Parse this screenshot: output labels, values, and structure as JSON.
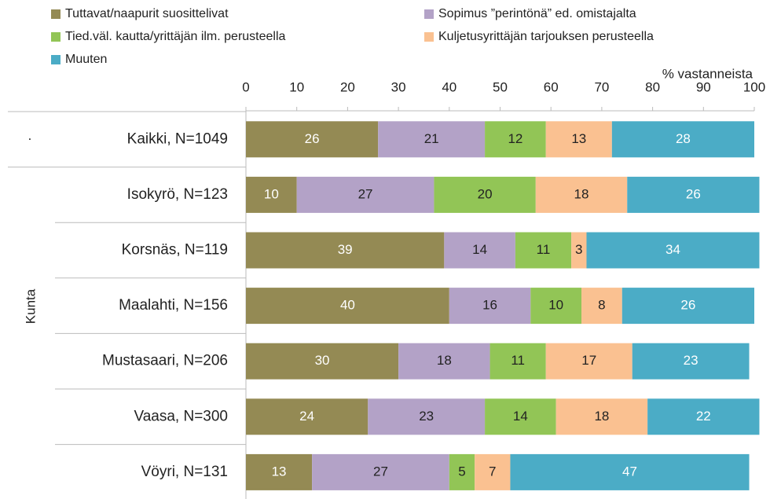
{
  "chart_data": {
    "type": "stacked_barh",
    "x_label": "% vastanneista",
    "group_label": "Kunta",
    "row_mark": "·",
    "categories": [
      "Kaikki, N=1049",
      "Isokyrö, N=123",
      "Korsnäs, N=119",
      "Maalahti, N=156",
      "Mustasaari, N=206",
      "Vaasa, N=300",
      "Vöyri, N=131"
    ],
    "series": [
      {
        "name": "Tuttavat/naapurit suosittelivat",
        "color": "#948a54",
        "label_color": "#ffffff",
        "values": [
          26,
          10,
          39,
          40,
          30,
          24,
          13
        ]
      },
      {
        "name": "Sopimus ”perintönä” ed. omistajalta",
        "color": "#b3a2c7",
        "label_color": "#222222",
        "values": [
          21,
          27,
          14,
          16,
          18,
          23,
          27
        ]
      },
      {
        "name": "Tied.väl. kautta/yrittäjän ilm. perusteella",
        "color": "#92c556",
        "label_color": "#222222",
        "values": [
          12,
          20,
          11,
          10,
          11,
          14,
          5
        ]
      },
      {
        "name": "Kuljetusyrittäjän tarjouksen perusteella",
        "color": "#fac191",
        "label_color": "#222222",
        "values": [
          13,
          18,
          3,
          8,
          17,
          18,
          7
        ]
      },
      {
        "name": "Muuten",
        "color": "#4bacc6",
        "label_color": "#ffffff",
        "values": [
          28,
          26,
          34,
          26,
          23,
          22,
          47
        ]
      }
    ],
    "xlim": [
      0,
      100
    ],
    "xticks": [
      0,
      10,
      20,
      30,
      40,
      50,
      60,
      70,
      80,
      90,
      100
    ]
  }
}
